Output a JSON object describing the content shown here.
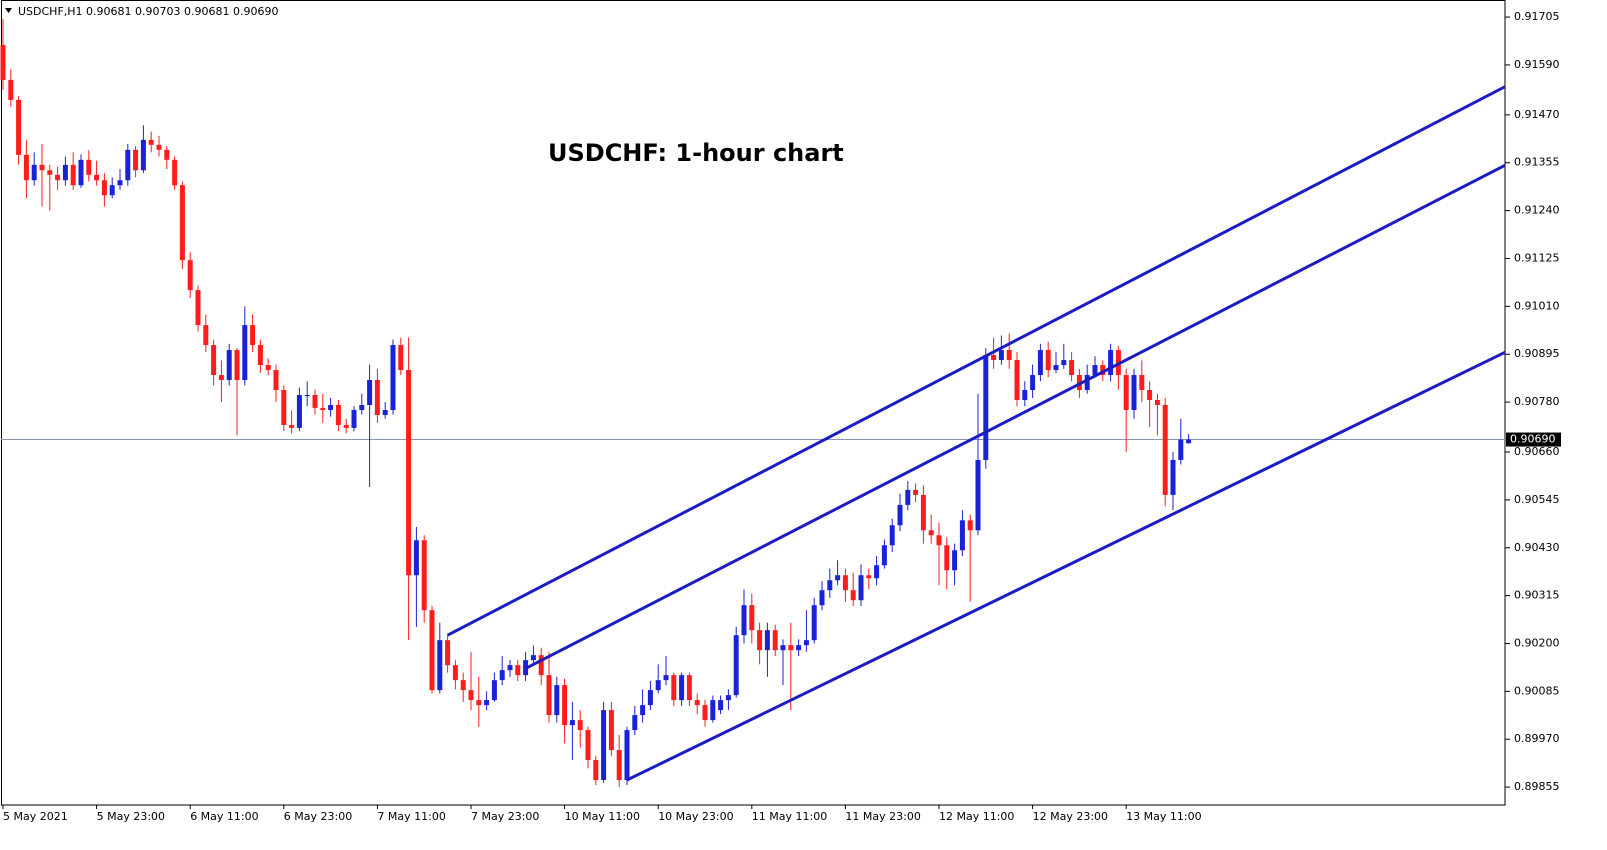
{
  "chart_data": {
    "type": "candlestick",
    "title": "USDCHF: 1-hour chart",
    "header": "USDCHF,H1  0.90681 0.90703 0.90681 0.90690",
    "categories": [
      "5 May 2021",
      null,
      null,
      null,
      null,
      null,
      null,
      null,
      null,
      null,
      null,
      null,
      "5 May 23:00",
      null,
      null,
      null,
      null,
      null,
      null,
      null,
      null,
      null,
      null,
      null,
      "6 May 11:00",
      null,
      null,
      null,
      null,
      null,
      null,
      null,
      null,
      null,
      null,
      null,
      "6 May 23:00",
      null,
      null,
      null,
      null,
      null,
      null,
      null,
      null,
      null,
      null,
      null,
      "7 May 11:00",
      null,
      null,
      null,
      null,
      null,
      null,
      null,
      null,
      null,
      null,
      null,
      "7 May 23:00",
      null,
      null,
      null,
      null,
      null,
      null,
      null,
      null,
      null,
      null,
      null,
      "10 May 11:00",
      null,
      null,
      null,
      null,
      null,
      null,
      null,
      null,
      null,
      null,
      null,
      "10 May 23:00",
      null,
      null,
      null,
      null,
      null,
      null,
      null,
      null,
      null,
      null,
      null,
      "11 May 11:00",
      null,
      null,
      null,
      null,
      null,
      null,
      null,
      null,
      null,
      null,
      null,
      "11 May 23:00",
      null,
      null,
      null,
      null,
      null,
      null,
      null,
      null,
      null,
      null,
      null,
      "12 May 11:00",
      null,
      null,
      null,
      null,
      null,
      null,
      null,
      null,
      null,
      null,
      null,
      "12 May 23:00",
      null,
      null,
      null,
      null,
      null,
      null,
      null,
      null,
      null,
      null,
      null,
      "13 May 11:00",
      null,
      null,
      null,
      null,
      null,
      null,
      null,
      null
    ],
    "ohlc": [
      [
        0.91638,
        0.917,
        0.9153,
        0.91554
      ],
      [
        0.91554,
        0.9158,
        0.9149,
        0.91506
      ],
      [
        0.91506,
        0.91515,
        0.9135,
        0.91374
      ],
      [
        0.91374,
        0.9141,
        0.9127,
        0.91313
      ],
      [
        0.91313,
        0.9138,
        0.913,
        0.9135
      ],
      [
        0.9135,
        0.914,
        0.9125,
        0.91337
      ],
      [
        0.91337,
        0.9135,
        0.9124,
        0.91326
      ],
      [
        0.91326,
        0.91345,
        0.9129,
        0.91313
      ],
      [
        0.91313,
        0.9137,
        0.913,
        0.9135
      ],
      [
        0.9135,
        0.9138,
        0.9129,
        0.91301
      ],
      [
        0.91301,
        0.91375,
        0.91295,
        0.91362
      ],
      [
        0.91362,
        0.91385,
        0.9131,
        0.91326
      ],
      [
        0.91326,
        0.9136,
        0.913,
        0.91313
      ],
      [
        0.91313,
        0.9133,
        0.9125,
        0.91277
      ],
      [
        0.91277,
        0.9132,
        0.9127,
        0.91301
      ],
      [
        0.91301,
        0.9134,
        0.9129,
        0.91313
      ],
      [
        0.91313,
        0.914,
        0.913,
        0.91386
      ],
      [
        0.91386,
        0.91395,
        0.9132,
        0.91337
      ],
      [
        0.91337,
        0.91445,
        0.9133,
        0.9141
      ],
      [
        0.9141,
        0.9143,
        0.9138,
        0.91398
      ],
      [
        0.91398,
        0.9142,
        0.9137,
        0.91386
      ],
      [
        0.91386,
        0.91395,
        0.9134,
        0.91362
      ],
      [
        0.91362,
        0.9137,
        0.9129,
        0.91301
      ],
      [
        0.91301,
        0.9131,
        0.911,
        0.91121
      ],
      [
        0.91121,
        0.9114,
        0.9103,
        0.91049
      ],
      [
        0.91049,
        0.9106,
        0.9095,
        0.90965
      ],
      [
        0.90965,
        0.9099,
        0.909,
        0.90917
      ],
      [
        0.90917,
        0.9093,
        0.9082,
        0.90845
      ],
      [
        0.90845,
        0.9088,
        0.9078,
        0.90833
      ],
      [
        0.90833,
        0.9092,
        0.9082,
        0.90905
      ],
      [
        0.90905,
        0.9091,
        0.907,
        0.90833
      ],
      [
        0.90833,
        0.9101,
        0.9082,
        0.90965
      ],
      [
        0.90965,
        0.9099,
        0.909,
        0.90917
      ],
      [
        0.90917,
        0.9093,
        0.9085,
        0.90869
      ],
      [
        0.90869,
        0.90885,
        0.90845,
        0.90857
      ],
      [
        0.90857,
        0.9087,
        0.9078,
        0.90809
      ],
      [
        0.90809,
        0.9082,
        0.9071,
        0.90725
      ],
      [
        0.90725,
        0.9076,
        0.90705,
        0.90718
      ],
      [
        0.90718,
        0.90815,
        0.9071,
        0.90797
      ],
      [
        0.90797,
        0.9083,
        0.9077,
        0.90797
      ],
      [
        0.90797,
        0.9081,
        0.9075,
        0.90766
      ],
      [
        0.90766,
        0.908,
        0.9073,
        0.90761
      ],
      [
        0.90761,
        0.9079,
        0.90745,
        0.90773
      ],
      [
        0.90773,
        0.90785,
        0.9071,
        0.90725
      ],
      [
        0.90725,
        0.9074,
        0.90705,
        0.90718
      ],
      [
        0.90718,
        0.9077,
        0.9071,
        0.90761
      ],
      [
        0.90761,
        0.908,
        0.9075,
        0.90773
      ],
      [
        0.90773,
        0.9087,
        0.90576,
        0.90833
      ],
      [
        0.90833,
        0.9086,
        0.9073,
        0.90749
      ],
      [
        0.90749,
        0.9078,
        0.9074,
        0.90761
      ],
      [
        0.90761,
        0.9093,
        0.9075,
        0.90917
      ],
      [
        0.90917,
        0.90935,
        0.90845,
        0.90857
      ],
      [
        0.90857,
        0.90935,
        0.90208,
        0.90364
      ],
      [
        0.90364,
        0.9048,
        0.9024,
        0.90448
      ],
      [
        0.90448,
        0.9046,
        0.9025,
        0.9028
      ],
      [
        0.9028,
        0.9029,
        0.9008,
        0.90088
      ],
      [
        0.90088,
        0.9025,
        0.9008,
        0.90208
      ],
      [
        0.90208,
        0.9022,
        0.9013,
        0.90148
      ],
      [
        0.90148,
        0.9016,
        0.9009,
        0.90112
      ],
      [
        0.90112,
        0.9013,
        0.9006,
        0.90088
      ],
      [
        0.90088,
        0.9018,
        0.9004,
        0.90064
      ],
      [
        0.90064,
        0.9012,
        0.9,
        0.90052
      ],
      [
        0.90052,
        0.90085,
        0.9004,
        0.90064
      ],
      [
        0.90064,
        0.9013,
        0.9006,
        0.90112
      ],
      [
        0.90112,
        0.9017,
        0.901,
        0.90136
      ],
      [
        0.90136,
        0.9016,
        0.9012,
        0.90148
      ],
      [
        0.90148,
        0.9016,
        0.9011,
        0.90124
      ],
      [
        0.90124,
        0.9018,
        0.9011,
        0.9016
      ],
      [
        0.9016,
        0.90195,
        0.9015,
        0.90172
      ],
      [
        0.90172,
        0.9019,
        0.901,
        0.90124
      ],
      [
        0.90124,
        0.9018,
        0.9001,
        0.90028
      ],
      [
        0.90028,
        0.9012,
        0.9001,
        0.901
      ],
      [
        0.901,
        0.90115,
        0.8996,
        0.90004
      ],
      [
        0.90004,
        0.9006,
        0.8992,
        0.90016
      ],
      [
        0.90016,
        0.9004,
        0.8995,
        0.89992
      ],
      [
        0.89992,
        0.9,
        0.899,
        0.8992
      ],
      [
        0.8992,
        0.8993,
        0.8986,
        0.89872
      ],
      [
        0.89872,
        0.9006,
        0.89865,
        0.9004
      ],
      [
        0.9004,
        0.9006,
        0.8993,
        0.89944
      ],
      [
        0.89944,
        0.8998,
        0.89855,
        0.89872
      ],
      [
        0.89872,
        0.9,
        0.8986,
        0.89992
      ],
      [
        0.89992,
        0.9005,
        0.8998,
        0.90028
      ],
      [
        0.90028,
        0.9009,
        0.9001,
        0.90052
      ],
      [
        0.90052,
        0.9011,
        0.9004,
        0.90088
      ],
      [
        0.90088,
        0.9015,
        0.9008,
        0.90112
      ],
      [
        0.90112,
        0.9017,
        0.901,
        0.90124
      ],
      [
        0.90124,
        0.9013,
        0.9005,
        0.90064
      ],
      [
        0.90064,
        0.9013,
        0.9005,
        0.90124
      ],
      [
        0.90124,
        0.9013,
        0.9005,
        0.90064
      ],
      [
        0.90064,
        0.9008,
        0.9003,
        0.90052
      ],
      [
        0.90052,
        0.90065,
        0.9,
        0.90016
      ],
      [
        0.90016,
        0.90075,
        0.9001,
        0.90064
      ],
      [
        0.9004,
        0.90075,
        0.9003,
        0.90064
      ],
      [
        0.90064,
        0.9009,
        0.9004,
        0.90076
      ],
      [
        0.90076,
        0.9024,
        0.9007,
        0.9022
      ],
      [
        0.9022,
        0.9033,
        0.902,
        0.90292
      ],
      [
        0.90292,
        0.9032,
        0.902,
        0.90232
      ],
      [
        0.90232,
        0.9025,
        0.9015,
        0.90184
      ],
      [
        0.90184,
        0.9025,
        0.9012,
        0.90232
      ],
      [
        0.90232,
        0.90245,
        0.9017,
        0.90184
      ],
      [
        0.90184,
        0.9021,
        0.901,
        0.90196
      ],
      [
        0.90196,
        0.9025,
        0.9004,
        0.90184
      ],
      [
        0.90184,
        0.9021,
        0.9017,
        0.90196
      ],
      [
        0.90196,
        0.9028,
        0.9018,
        0.90208
      ],
      [
        0.90208,
        0.9031,
        0.902,
        0.90292
      ],
      [
        0.90292,
        0.9035,
        0.9028,
        0.90328
      ],
      [
        0.90328,
        0.9038,
        0.9031,
        0.90352
      ],
      [
        0.90352,
        0.904,
        0.9034,
        0.90364
      ],
      [
        0.90364,
        0.9038,
        0.903,
        0.90328
      ],
      [
        0.90328,
        0.9037,
        0.9029,
        0.90304
      ],
      [
        0.90304,
        0.9039,
        0.9029,
        0.90364
      ],
      [
        0.90364,
        0.9038,
        0.9033,
        0.90357
      ],
      [
        0.90357,
        0.9041,
        0.9034,
        0.90388
      ],
      [
        0.90388,
        0.9045,
        0.9038,
        0.90436
      ],
      [
        0.90436,
        0.905,
        0.9042,
        0.90484
      ],
      [
        0.90484,
        0.9056,
        0.9047,
        0.90533
      ],
      [
        0.90533,
        0.9059,
        0.9052,
        0.90569
      ],
      [
        0.90569,
        0.90585,
        0.9054,
        0.90557
      ],
      [
        0.90557,
        0.9058,
        0.9044,
        0.90472
      ],
      [
        0.90472,
        0.9051,
        0.9044,
        0.9046
      ],
      [
        0.9046,
        0.9049,
        0.9034,
        0.90436
      ],
      [
        0.90436,
        0.90455,
        0.9033,
        0.90376
      ],
      [
        0.90376,
        0.9044,
        0.9034,
        0.90424
      ],
      [
        0.90424,
        0.9052,
        0.9041,
        0.90496
      ],
      [
        0.90496,
        0.9051,
        0.903,
        0.90472
      ],
      [
        0.90472,
        0.908,
        0.9046,
        0.90641
      ],
      [
        0.90641,
        0.9091,
        0.9062,
        0.90893
      ],
      [
        0.90893,
        0.90935,
        0.9086,
        0.90881
      ],
      [
        0.90881,
        0.9094,
        0.9087,
        0.90905
      ],
      [
        0.90905,
        0.90945,
        0.9086,
        0.90881
      ],
      [
        0.90881,
        0.909,
        0.9077,
        0.90785
      ],
      [
        0.90785,
        0.9083,
        0.9077,
        0.90809
      ],
      [
        0.90809,
        0.9087,
        0.9079,
        0.90845
      ],
      [
        0.90845,
        0.9092,
        0.9083,
        0.90905
      ],
      [
        0.90905,
        0.90925,
        0.9084,
        0.90857
      ],
      [
        0.90857,
        0.909,
        0.9085,
        0.90869
      ],
      [
        0.90869,
        0.9092,
        0.9086,
        0.90881
      ],
      [
        0.90881,
        0.909,
        0.9083,
        0.90845
      ],
      [
        0.90845,
        0.9086,
        0.9079,
        0.90809
      ],
      [
        0.90809,
        0.9087,
        0.908,
        0.90845
      ],
      [
        0.90845,
        0.9089,
        0.9084,
        0.90869
      ],
      [
        0.90869,
        0.9088,
        0.9083,
        0.90845
      ],
      [
        0.90845,
        0.9092,
        0.9083,
        0.90905
      ],
      [
        0.90905,
        0.90915,
        0.9081,
        0.90845
      ],
      [
        0.90845,
        0.9086,
        0.9066,
        0.90761
      ],
      [
        0.90761,
        0.9086,
        0.9074,
        0.90845
      ],
      [
        0.90845,
        0.9088,
        0.9078,
        0.90809
      ],
      [
        0.90809,
        0.9083,
        0.9072,
        0.90785
      ],
      [
        0.90785,
        0.908,
        0.907,
        0.90773
      ],
      [
        0.90773,
        0.9079,
        0.9053,
        0.90557
      ],
      [
        0.90557,
        0.9066,
        0.9052,
        0.90641
      ],
      [
        0.90641,
        0.9074,
        0.9063,
        0.9069
      ],
      [
        0.90681,
        0.90703,
        0.90681,
        0.9069
      ]
    ],
    "up_color": "#1a22d8",
    "down_color": "#ff1c1c",
    "ylim": [
      0.89812,
      0.91746
    ],
    "yticks": [
      0.91705,
      {
        "value": 0.9159,
        "label": "0.91590"
      },
      {
        "value": 0.9147,
        "label": "0.91470"
      },
      0.91355,
      {
        "value": 0.9124,
        "label": "0.91240"
      },
      0.91125,
      {
        "value": 0.9101,
        "label": "0.91010"
      },
      0.90895,
      {
        "value": 0.9078,
        "label": "0.90780"
      },
      {
        "value": 0.9066,
        "label": "0.90660"
      },
      0.90545,
      {
        "value": 0.9043,
        "label": "0.90430"
      },
      0.90315,
      {
        "value": 0.902,
        "label": "0.90200"
      },
      0.90085,
      {
        "value": 0.8997,
        "label": "0.89970"
      },
      0.89855
    ],
    "current_price": {
      "value": 0.9069,
      "label": "0.90690"
    },
    "price_line_color": "#8a96b0",
    "trendlines": [
      {
        "x": [
          57,
          150
        ],
        "y": [
          0.9022,
          0.91124
        ]
      },
      {
        "x": [
          67,
          150
        ],
        "y": [
          0.9014,
          0.90939
        ]
      },
      {
        "x": [
          80,
          150
        ],
        "y": [
          0.89872,
          0.90511
        ]
      }
    ],
    "trendline_color": "#1c1cc4"
  }
}
